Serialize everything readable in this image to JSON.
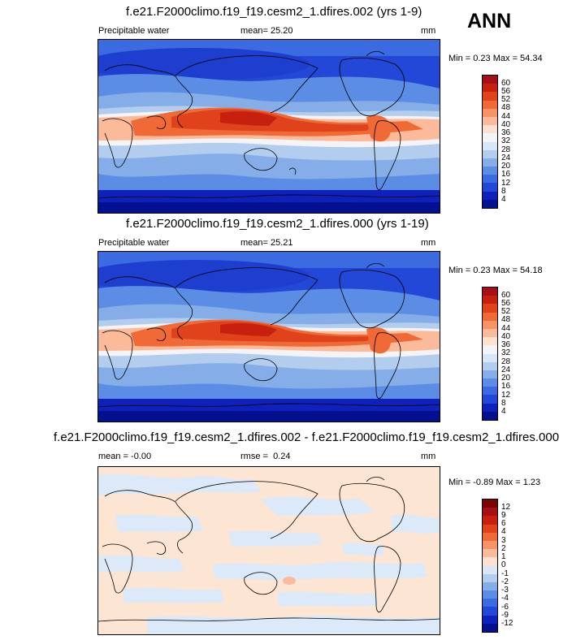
{
  "season": "ANN",
  "panels": [
    {
      "title": "f.e21.F2000climo.f19_f19.cesm2_1.dfires.002 (yrs 1-9)",
      "left_label": "Precipitable water",
      "stat_label": "mean=",
      "stat_value": "25.20",
      "units": "mm",
      "minmax": "Min =  0.23 Max =  54.34",
      "colorbar_labels": [
        "60",
        "56",
        "52",
        "48",
        "44",
        "40",
        "36",
        "32",
        "28",
        "24",
        "20",
        "16",
        "12",
        "8",
        "4"
      ]
    },
    {
      "title": "f.e21.F2000climo.f19_f19.cesm2_1.dfires.000 (yrs 1-19)",
      "left_label": "Precipitable water",
      "stat_label": "mean=",
      "stat_value": "25.21",
      "units": "mm",
      "minmax": "Min =  0.23 Max =  54.18",
      "colorbar_labels": [
        "60",
        "56",
        "52",
        "48",
        "44",
        "40",
        "36",
        "32",
        "28",
        "24",
        "20",
        "16",
        "12",
        "8",
        "4"
      ]
    },
    {
      "title": "f.e21.F2000climo.f19_f19.cesm2_1.dfires.002 - f.e21.F2000climo.f19_f19.cesm2_1.dfires.000",
      "left_label": "mean =  -0.00",
      "stat_label": "rmse =",
      "stat_value": "0.24",
      "units": "mm",
      "minmax": "Min = -0.89 Max =  1.23",
      "colorbar_labels": [
        "12",
        "9",
        "6",
        "4",
        "3",
        "2",
        "1",
        "0",
        "-1",
        "-2",
        "-3",
        "-4",
        "-6",
        "-9",
        "-12"
      ]
    }
  ],
  "colors": {
    "abs_scale": [
      "#a50f15",
      "#c8200f",
      "#e0431c",
      "#ef6a36",
      "#f69467",
      "#fbbb9a",
      "#fde0d0",
      "#f4f4f8",
      "#d8e6f7",
      "#b3cdef",
      "#85aee8",
      "#5b8de4",
      "#3a6be0",
      "#2347d6",
      "#0e22bb",
      "#03108f"
    ],
    "diff_scale": [
      "#7a0403",
      "#a50f15",
      "#c8200f",
      "#e0431c",
      "#ef6a36",
      "#f69467",
      "#fbbb9a",
      "#fde0d0",
      "#d8e6f7",
      "#b3cdef",
      "#85aee8",
      "#5b8de4",
      "#3a6be0",
      "#2347d6",
      "#0e22bb",
      "#03108f"
    ],
    "diff_background": "#fde5d3",
    "diff_negative": "#dce9f8"
  }
}
